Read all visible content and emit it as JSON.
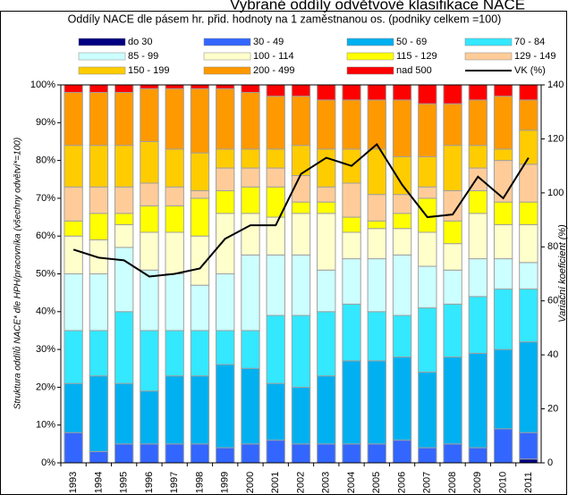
{
  "chart_data": {
    "type": "bar",
    "stacked": true,
    "title": "Vybrané oddíly odvětvové klasifikace NACE",
    "subtitle": "Oddíly NACE dle pásem hr. přid. hodnoty na 1 zaměstnanou os. (podniky celkem =100)",
    "ylabel": "Struktura oddílů NACE* dle HPH/pracovníka (všechny odvětví*=100)",
    "y2label": "Variační koeficient (%)",
    "categories": [
      "1993",
      "1994",
      "1995",
      "1996",
      "1997",
      "1998",
      "1999",
      "2000",
      "2001",
      "2002",
      "2003",
      "2004",
      "2005",
      "2006",
      "2007",
      "2008",
      "2009",
      "2010",
      "2011"
    ],
    "series": [
      {
        "name": "do 30",
        "color": "#000080",
        "values": [
          0,
          0,
          0,
          0,
          0,
          0,
          0,
          0,
          0,
          0,
          0,
          0,
          0,
          0,
          0,
          0,
          0,
          0,
          1
        ]
      },
      {
        "name": "30 - 49",
        "color": "#3366ff",
        "values": [
          8,
          3,
          5,
          5,
          5,
          5,
          4,
          5,
          6,
          5,
          5,
          5,
          5,
          6,
          4,
          5,
          4,
          9,
          7
        ]
      },
      {
        "name": "50 - 69",
        "color": "#00b0f0",
        "values": [
          13,
          20,
          16,
          14,
          18,
          18,
          22,
          20,
          15,
          15,
          18,
          22,
          22,
          22,
          20,
          23,
          25,
          21,
          24
        ]
      },
      {
        "name": "70 - 84",
        "color": "#33e8ff",
        "values": [
          14,
          12,
          19,
          16,
          12,
          12,
          9,
          10,
          18,
          19,
          17,
          15,
          13,
          11,
          17,
          14,
          15,
          16,
          14
        ]
      },
      {
        "name": "85 - 99",
        "color": "#ccffff",
        "values": [
          15,
          15,
          17,
          16,
          15,
          12,
          15,
          20,
          16,
          16,
          11,
          12,
          14,
          16,
          11,
          9,
          10,
          8,
          7
        ]
      },
      {
        "name": "100 - 114",
        "color": "#ffffcc",
        "values": [
          10,
          9,
          6,
          10,
          11,
          13,
          16,
          11,
          10,
          11,
          15,
          7,
          8,
          7,
          9,
          7,
          12,
          9,
          10
        ]
      },
      {
        "name": "115 - 129",
        "color": "#ffff00",
        "values": [
          4,
          7,
          3,
          7,
          7,
          10,
          6,
          7,
          8,
          3,
          3,
          4,
          2,
          4,
          9,
          6,
          6,
          6,
          6
        ]
      },
      {
        "name": "129 - 149",
        "color": "#ffcc99",
        "values": [
          9,
          7,
          7,
          6,
          5,
          2,
          6,
          5,
          5,
          7,
          4,
          9,
          7,
          5,
          3,
          8,
          6,
          11,
          10
        ]
      },
      {
        "name": "150 - 199",
        "color": "#ffcc00",
        "values": [
          11,
          11,
          11,
          11,
          10,
          10,
          5,
          5,
          5,
          8,
          10,
          9,
          12,
          10,
          8,
          12,
          6,
          3,
          9
        ]
      },
      {
        "name": "200 - 499",
        "color": "#ff9900",
        "values": [
          14,
          14,
          14,
          14,
          16,
          17,
          16,
          15,
          14,
          13,
          13,
          13,
          13,
          15,
          14,
          11,
          12,
          14,
          8
        ]
      },
      {
        "name": "nad 500",
        "color": "#ff0000",
        "values": [
          2,
          2,
          2,
          1,
          1,
          1,
          1,
          2,
          3,
          3,
          4,
          4,
          4,
          4,
          5,
          5,
          4,
          3,
          4
        ]
      },
      {
        "name": "VK (%)",
        "color": "#000000",
        "type": "line",
        "axis": "y2",
        "values": [
          79,
          76,
          75,
          69,
          70,
          72,
          83,
          88,
          88,
          107,
          113,
          110,
          118,
          103,
          91,
          92,
          106,
          98,
          113
        ]
      }
    ],
    "ylim": [
      0,
      100
    ],
    "yticks": [
      {
        "value": 0,
        "label": "0%"
      },
      {
        "value": 10,
        "label": "10%"
      },
      {
        "value": 20,
        "label": "20%"
      },
      {
        "value": 30,
        "label": "30%"
      },
      {
        "value": 40,
        "label": "40%"
      },
      {
        "value": 50,
        "label": "50%"
      },
      {
        "value": 60,
        "label": "60%"
      },
      {
        "value": 70,
        "label": "70%"
      },
      {
        "value": 80,
        "label": "80%"
      },
      {
        "value": 90,
        "label": "90%"
      },
      {
        "value": 100,
        "label": "100%"
      }
    ],
    "y2lim": [
      0,
      140
    ],
    "y2ticks": [
      0,
      20,
      40,
      60,
      80,
      100,
      120,
      140
    ],
    "grid": false,
    "legend": "top"
  }
}
